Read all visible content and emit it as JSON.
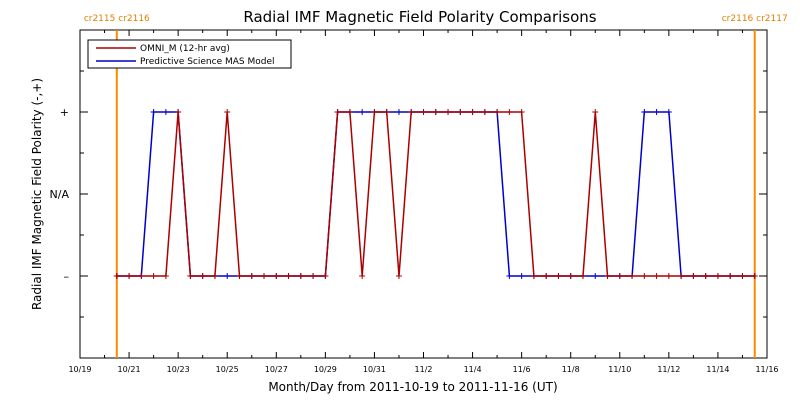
{
  "chart_data": {
    "type": "line",
    "title": "Radial IMF Magnetic Field Polarity Comparisons",
    "xlabel": "Month/Day from 2011-10-19 to 2011-11-16 (UT)",
    "ylabel": "Radial IMF Magnetic Field Polarity (-,+)",
    "xlim_days": [
      0,
      28
    ],
    "ylim": [
      -2,
      2
    ],
    "y_ticks": [
      {
        "value": 1,
        "label": "+"
      },
      {
        "value": 0,
        "label": "N/A"
      },
      {
        "value": -1,
        "label": "–"
      }
    ],
    "x_ticks": [
      {
        "day": 0,
        "label": "10/19"
      },
      {
        "day": 2,
        "label": "10/21"
      },
      {
        "day": 4,
        "label": "10/23"
      },
      {
        "day": 6,
        "label": "10/25"
      },
      {
        "day": 8,
        "label": "10/27"
      },
      {
        "day": 10,
        "label": "10/29"
      },
      {
        "day": 12,
        "label": "10/31"
      },
      {
        "day": 14,
        "label": "11/2"
      },
      {
        "day": 16,
        "label": "11/4"
      },
      {
        "day": 18,
        "label": "11/6"
      },
      {
        "day": 20,
        "label": "11/8"
      },
      {
        "day": 22,
        "label": "11/10"
      },
      {
        "day": 24,
        "label": "11/12"
      },
      {
        "day": 26,
        "label": "11/14"
      },
      {
        "day": 28,
        "label": "11/16"
      }
    ],
    "rotation_markers": [
      {
        "day": 1.5,
        "label": "cr2115 cr2116"
      },
      {
        "day": 27.5,
        "label": "cr2116 cr2117"
      }
    ],
    "legend_position": "top-left",
    "series": [
      {
        "name": "OMNI_M (12-hr avg)",
        "color": "#aa0000",
        "marker": "+",
        "x": [
          1.5,
          2.0,
          2.5,
          3.0,
          3.5,
          4.0,
          4.5,
          5.0,
          5.5,
          6.0,
          6.5,
          7.0,
          7.5,
          8.0,
          8.5,
          9.0,
          9.5,
          10.0,
          10.5,
          11.0,
          11.5,
          12.0,
          12.5,
          13.0,
          13.5,
          14.0,
          14.5,
          15.0,
          15.5,
          16.0,
          16.5,
          17.0,
          17.5,
          18.0,
          18.5,
          19.0,
          19.5,
          20.0,
          20.5,
          21.0,
          21.5,
          22.0,
          22.5,
          23.0,
          23.5,
          24.0,
          24.5,
          25.0,
          25.5,
          26.0,
          26.5,
          27.0,
          27.5
        ],
        "y": [
          -1,
          -1,
          -1,
          -1,
          -1,
          1,
          -1,
          -1,
          -1,
          1,
          -1,
          -1,
          -1,
          -1,
          -1,
          -1,
          -1,
          -1,
          1,
          1,
          -1,
          1,
          1,
          -1,
          1,
          1,
          1,
          1,
          1,
          1,
          1,
          1,
          1,
          1,
          -1,
          -1,
          -1,
          -1,
          -1,
          1,
          -1,
          -1,
          -1,
          -1,
          -1,
          -1,
          -1,
          -1,
          -1,
          -1,
          -1,
          -1,
          -1
        ]
      },
      {
        "name": "Predictive Science MAS Model",
        "color": "#0000cc",
        "marker": "+",
        "x": [
          1.5,
          2.0,
          2.5,
          3.0,
          3.5,
          4.0,
          4.5,
          5.0,
          5.5,
          6.0,
          6.5,
          7.0,
          7.5,
          8.0,
          8.5,
          9.0,
          9.5,
          10.0,
          10.5,
          11.0,
          11.5,
          12.0,
          12.5,
          13.0,
          13.5,
          14.0,
          14.5,
          15.0,
          15.5,
          16.0,
          16.5,
          17.0,
          17.5,
          18.0,
          18.5,
          19.0,
          19.5,
          20.0,
          20.5,
          21.0,
          21.5,
          22.0,
          22.5,
          23.0,
          23.5,
          24.0,
          24.5,
          25.0,
          25.5,
          26.0,
          26.5,
          27.0,
          27.5
        ],
        "y": [
          -1,
          -1,
          -1,
          1,
          1,
          1,
          -1,
          -1,
          -1,
          -1,
          -1,
          -1,
          -1,
          -1,
          -1,
          -1,
          -1,
          -1,
          1,
          1,
          1,
          1,
          1,
          1,
          1,
          1,
          1,
          1,
          1,
          1,
          1,
          1,
          -1,
          -1,
          -1,
          -1,
          -1,
          -1,
          -1,
          -1,
          -1,
          -1,
          -1,
          1,
          1,
          1,
          -1,
          -1,
          -1,
          -1,
          -1,
          -1,
          -1
        ]
      }
    ]
  }
}
